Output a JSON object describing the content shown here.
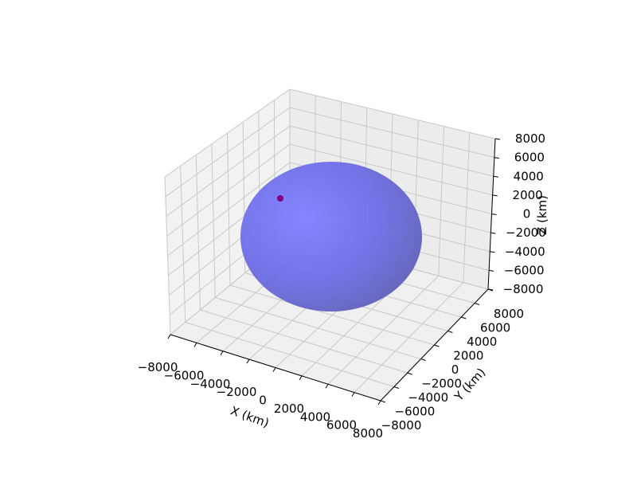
{
  "chart_data": {
    "type": "scatter",
    "projection": "3d",
    "xlabel": "X (km)",
    "ylabel": "Y (km)",
    "zlabel": "Z (km)",
    "xlim": [
      -8000,
      8000
    ],
    "ylim": [
      -8000,
      8000
    ],
    "zlim": [
      -8000,
      8000
    ],
    "xticks": [
      "−8000",
      "−6000",
      "−4000",
      "−2000",
      "0",
      "2000",
      "4000",
      "6000",
      "8000"
    ],
    "yticks": [
      "−8000",
      "−6000",
      "−4000",
      "−2000",
      "0",
      "2000",
      "4000",
      "6000",
      "8000"
    ],
    "zticks": [
      "−8000",
      "−6000",
      "−4000",
      "−2000",
      "0",
      "2000",
      "4000",
      "6000",
      "8000"
    ],
    "grid": true,
    "sphere": {
      "center": [
        0,
        0,
        0
      ],
      "radius": 6371,
      "color": "#4d4dff"
    },
    "points": [
      {
        "x": -3500,
        "y": 0,
        "z": 5200,
        "color": "#800080"
      }
    ]
  }
}
